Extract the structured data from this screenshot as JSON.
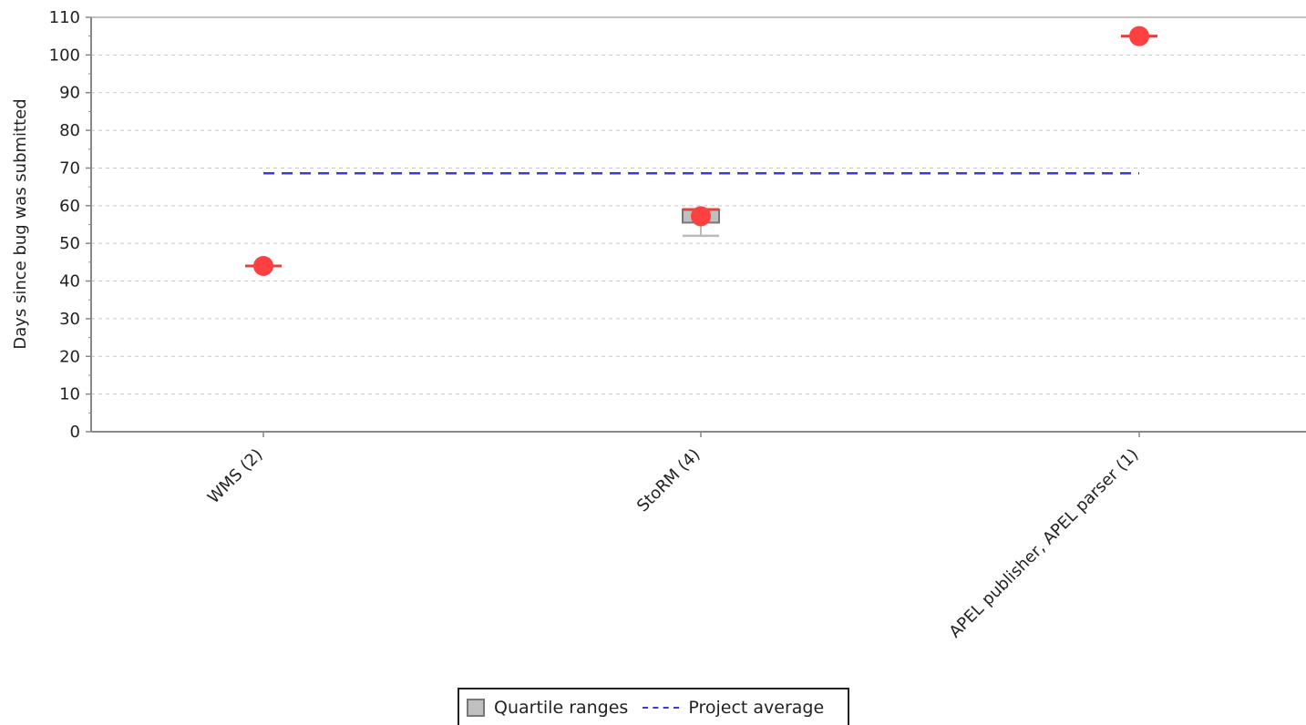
{
  "chart_data": {
    "type": "box",
    "ylabel": "Days since bug was submitted",
    "xlabel": "",
    "ylim": [
      0,
      110
    ],
    "yticks": [
      0,
      10,
      20,
      30,
      40,
      50,
      60,
      70,
      80,
      90,
      100,
      110
    ],
    "grid": true,
    "categories": [
      "WMS (2)",
      "StoRM (4)",
      "APEL publisher, APEL parser (1)"
    ],
    "series": [
      {
        "name": "Quartile ranges",
        "values": [
          {
            "q1": 44,
            "median": 44,
            "q3": 44,
            "low": 44,
            "high": 44,
            "mean": 44
          },
          {
            "q1": 55.5,
            "median": 59,
            "q3": 59,
            "low": 52,
            "high": 59,
            "mean": 57.2
          },
          {
            "q1": 105,
            "median": 105,
            "q3": 105,
            "low": 105,
            "high": 105,
            "mean": 105
          }
        ]
      },
      {
        "name": "Project average",
        "value": 68.6
      }
    ],
    "legend": {
      "position": "bottom-center",
      "items": [
        "Quartile ranges",
        "Project average"
      ]
    },
    "colors": {
      "box_fill": "#c0c0c0",
      "box_stroke": "#777777",
      "median": "#e84040",
      "mean_marker": "#ff4040",
      "whisker": "#bbbbbb",
      "average_line": "#3b3bdd",
      "grid": "#c8c8c8",
      "axis": "#888888"
    }
  }
}
